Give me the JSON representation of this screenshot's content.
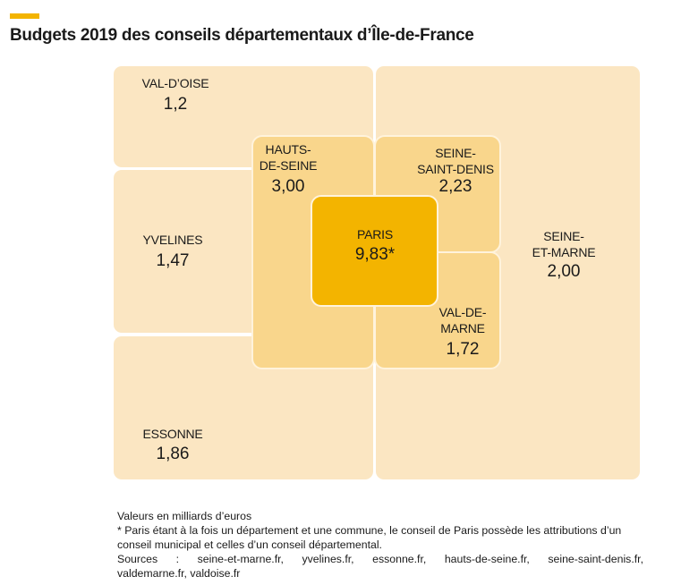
{
  "title": "Budgets 2019 des conseils départementaux d’Île-de-France",
  "colors": {
    "accent": "#f3b400",
    "outer_fill": "#fbe6c2",
    "middle_fill": "#f9d68c",
    "center_fill": "#f3b400"
  },
  "departments": {
    "val_doise": {
      "label": "VAL-D’OISE",
      "value": "1,2"
    },
    "yvelines": {
      "label": "YVELINES",
      "value": "1,47"
    },
    "essonne": {
      "label": "ESSONNE",
      "value": "1,86"
    },
    "seine_et_marne": {
      "label": "SEINE-\nET-MARNE",
      "value": "2,00"
    },
    "hauts_de_seine": {
      "label": "HAUTS-\nDE-SEINE",
      "value": "3,00"
    },
    "seine_saint_denis": {
      "label": "SEINE-\nSAINT-DENIS",
      "value": "2,23"
    },
    "val_de_marne": {
      "label": "VAL-DE-\nMARNE",
      "value": "1,72"
    },
    "paris": {
      "label": "PARIS",
      "value": "9,83*"
    }
  },
  "notes": {
    "units": "Valeurs en milliards d’euros",
    "footnote": "* Paris étant à la fois un département et une commune, le conseil de Paris possède les attributions d’un conseil municipal et celles d’un conseil départemental.",
    "sources_line1": "Sources : seine-et-marne.fr, yvelines.fr, essonne.fr, hauts-de-seine.fr, seine-saint-denis.fr,",
    "sources_line2": "valdemarne.fr, valdoise.fr"
  }
}
